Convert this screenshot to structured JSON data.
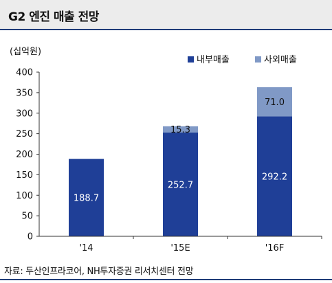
{
  "header": {
    "title": "G2 엔진 매출 전망"
  },
  "footer": {
    "source": "자료: 두산인프라코어, NH투자증권 리서치센터 전망"
  },
  "colors": {
    "internal": "#1f3f97",
    "external": "#8099c6",
    "title_rule": "#1f3c78"
  },
  "chart_data": {
    "type": "bar",
    "stacked": true,
    "unit_label": "(십억원)",
    "categories": [
      "'14",
      "'15E",
      "'16F"
    ],
    "series": [
      {
        "name": "내부매출",
        "values": [
          188.7,
          252.7,
          292.2
        ],
        "color": "#1f3f97"
      },
      {
        "name": "사외매출",
        "values": [
          0,
          15.3,
          71.0
        ],
        "color": "#8099c6"
      }
    ],
    "data_labels": [
      [
        "188.7",
        "252.7",
        "292.2"
      ],
      [
        "",
        "15.3",
        "71.0"
      ]
    ],
    "ylim": [
      0,
      400
    ],
    "yticks": [
      "0",
      "50",
      "100",
      "150",
      "200",
      "250",
      "300",
      "350",
      "400"
    ],
    "legend": "top-right",
    "grid": false
  }
}
